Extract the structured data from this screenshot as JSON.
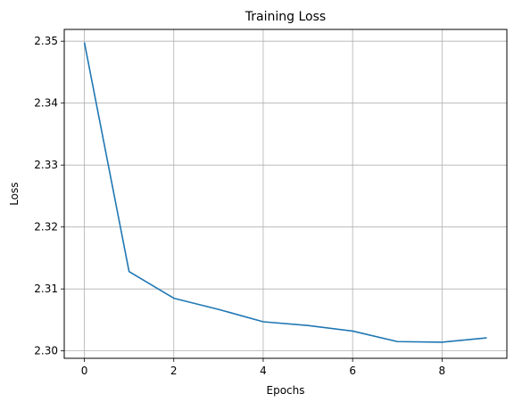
{
  "chart_data": {
    "type": "line",
    "title": "Training Loss",
    "xlabel": "Epochs",
    "ylabel": "Loss",
    "xlim": [
      -0.45,
      9.45
    ],
    "ylim": [
      2.2988,
      2.3519
    ],
    "xticks": [
      0,
      2,
      4,
      6,
      8
    ],
    "xtick_labels": [
      "0",
      "2",
      "4",
      "6",
      "8"
    ],
    "yticks": [
      2.3,
      2.31,
      2.32,
      2.33,
      2.34,
      2.35
    ],
    "ytick_labels": [
      "2.30",
      "2.31",
      "2.32",
      "2.33",
      "2.34",
      "2.35"
    ],
    "grid": true,
    "series": [
      {
        "color": "#1f77b4",
        "x": [
          0,
          1,
          2,
          3,
          4,
          5,
          6,
          7,
          8,
          9
        ],
        "y": [
          2.3498,
          2.3128,
          2.3085,
          2.3067,
          2.3047,
          2.3041,
          2.3032,
          2.3015,
          2.3014,
          2.3021
        ]
      }
    ]
  }
}
